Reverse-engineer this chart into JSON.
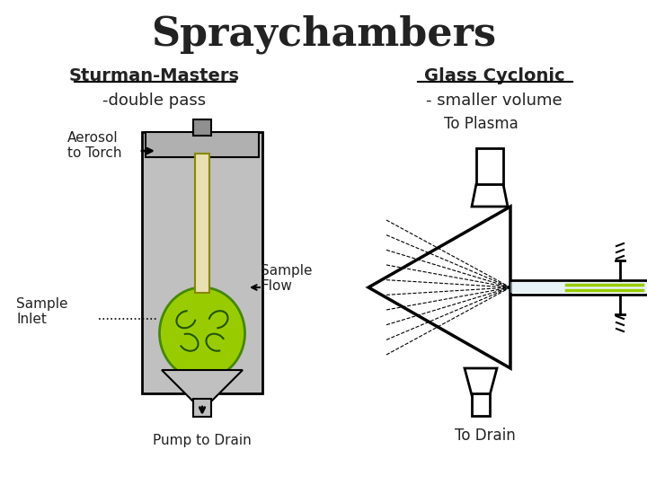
{
  "title": "Spraychambers",
  "title_fontsize": 32,
  "left_heading": "Sturman-Masters",
  "left_subheading": "-double pass",
  "right_heading": "Glass Cyclonic",
  "right_subheading": "- smaller volume",
  "label_aerosol": "Aerosol\nto Torch",
  "label_sample_inlet": "Sample\nInlet",
  "label_sample_flow": "Sample\nFlow",
  "label_pump": "Pump to Drain",
  "label_plasma": "To Plasma",
  "label_drain": "To Drain",
  "bg_color": "#ffffff",
  "green_color": "#99cc00",
  "gray_color": "#c0c0c0",
  "tan_color": "#e8e0b0",
  "dark_color": "#222222",
  "light_blue": "#d0e8f0"
}
